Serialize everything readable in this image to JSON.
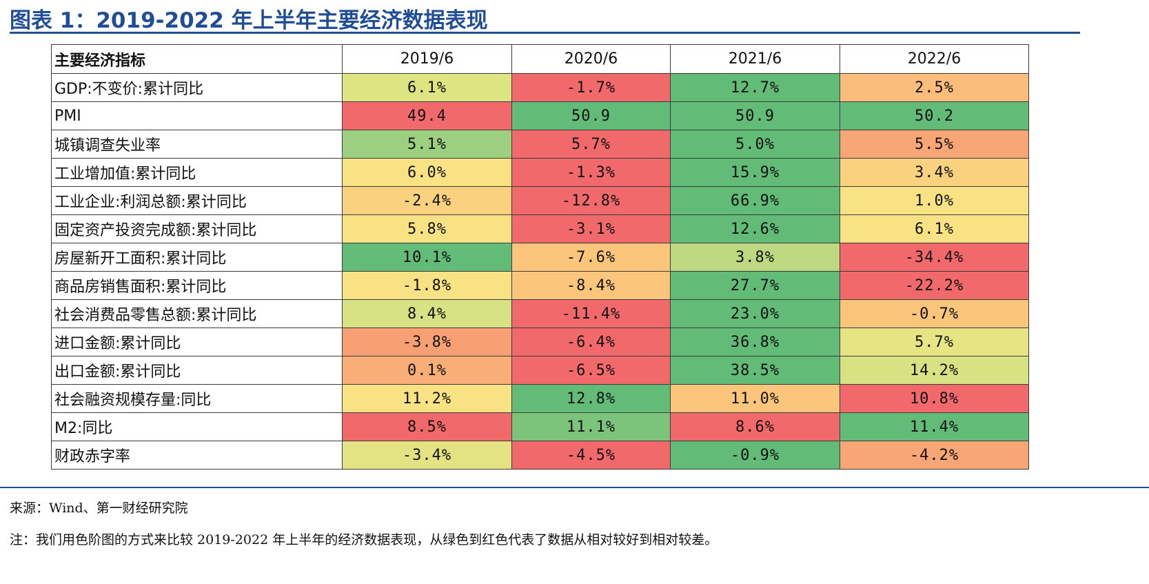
{
  "title": "图表 1：2019-2022 年上半年主要经济数据表现",
  "table": {
    "header": [
      "主要经济指标",
      "2019/6",
      "2020/6",
      "2021/6",
      "2022/6"
    ],
    "rows": [
      {
        "label": "GDP:不变价:累计同比",
        "values": [
          "6.1%",
          "-1.7%",
          "12.7%",
          "2.5%"
        ],
        "colors": [
          "#dde482",
          "#f2696b",
          "#62bb77",
          "#fabd7c"
        ]
      },
      {
        "label": "PMI",
        "values": [
          "49.4",
          "50.9",
          "50.9",
          "50.2"
        ],
        "colors": [
          "#f2696b",
          "#62bb77",
          "#62bb77",
          "#62bb77"
        ]
      },
      {
        "label": "城镇调查失业率",
        "values": [
          "5.1%",
          "5.7%",
          "5.0%",
          "5.5%"
        ],
        "colors": [
          "#9ccf7f",
          "#f2696b",
          "#62bb77",
          "#f9a676"
        ]
      },
      {
        "label": "工业增加值:累计同比",
        "values": [
          "6.0%",
          "-1.3%",
          "15.9%",
          "3.4%"
        ],
        "colors": [
          "#f8e283",
          "#f2696b",
          "#62bb77",
          "#fad27f"
        ]
      },
      {
        "label": "工业企业:利润总额:累计同比",
        "values": [
          "-2.4%",
          "-12.8%",
          "66.9%",
          "1.0%"
        ],
        "colors": [
          "#fad27f",
          "#f2696b",
          "#62bb77",
          "#f8e283"
        ]
      },
      {
        "label": "固定资产投资完成额:累计同比",
        "values": [
          "5.8%",
          "-3.1%",
          "12.6%",
          "6.1%"
        ],
        "colors": [
          "#f8e283",
          "#f2696b",
          "#62bb77",
          "#f8e283"
        ]
      },
      {
        "label": "房屋新开工面积:累计同比",
        "values": [
          "10.1%",
          "-7.6%",
          "3.8%",
          "-34.4%"
        ],
        "colors": [
          "#62bb77",
          "#fbc57c",
          "#bdd881",
          "#f2696b"
        ]
      },
      {
        "label": "商品房销售面积:累计同比",
        "values": [
          "-1.8%",
          "-8.4%",
          "27.7%",
          "-22.2%"
        ],
        "colors": [
          "#f8e283",
          "#fbc57c",
          "#62bb77",
          "#f2696b"
        ]
      },
      {
        "label": "社会消费品零售总额:累计同比",
        "values": [
          "8.4%",
          "-11.4%",
          "23.0%",
          "-0.7%"
        ],
        "colors": [
          "#d6e283",
          "#f2696b",
          "#62bb77",
          "#fbc57c"
        ]
      },
      {
        "label": "进口金额:累计同比",
        "values": [
          "-3.8%",
          "-6.4%",
          "36.8%",
          "5.7%"
        ],
        "colors": [
          "#f8a074",
          "#f2696b",
          "#62bb77",
          "#e7e483"
        ]
      },
      {
        "label": "出口金额:累计同比",
        "values": [
          "0.1%",
          "-6.5%",
          "38.5%",
          "14.2%"
        ],
        "colors": [
          "#f9ae78",
          "#f2696b",
          "#62bb77",
          "#d9e283"
        ]
      },
      {
        "label": "社会融资规模存量:同比",
        "values": [
          "11.2%",
          "12.8%",
          "11.0%",
          "10.8%"
        ],
        "colors": [
          "#f8e283",
          "#62bb77",
          "#fbc57c",
          "#f2696b"
        ]
      },
      {
        "label": "M2:同比",
        "values": [
          "8.5%",
          "11.1%",
          "8.6%",
          "11.4%"
        ],
        "colors": [
          "#f2696b",
          "#7cc37b",
          "#f2696b",
          "#62bb77"
        ]
      },
      {
        "label": "财政赤字率",
        "values": [
          "-3.4%",
          "-4.5%",
          "-0.9%",
          "-4.2%"
        ],
        "colors": [
          "#e4e383",
          "#f2696b",
          "#62bb77",
          "#f9a676"
        ]
      }
    ]
  },
  "source": "来源：Wind、第一财经研究院",
  "note": "注：我们用色阶图的方式来比较 2019-2022 年上半年的经济数据表现，从绿色到红色代表了数据从相对较好到相对较差。",
  "colors": {
    "accent": "#1f4e96"
  }
}
